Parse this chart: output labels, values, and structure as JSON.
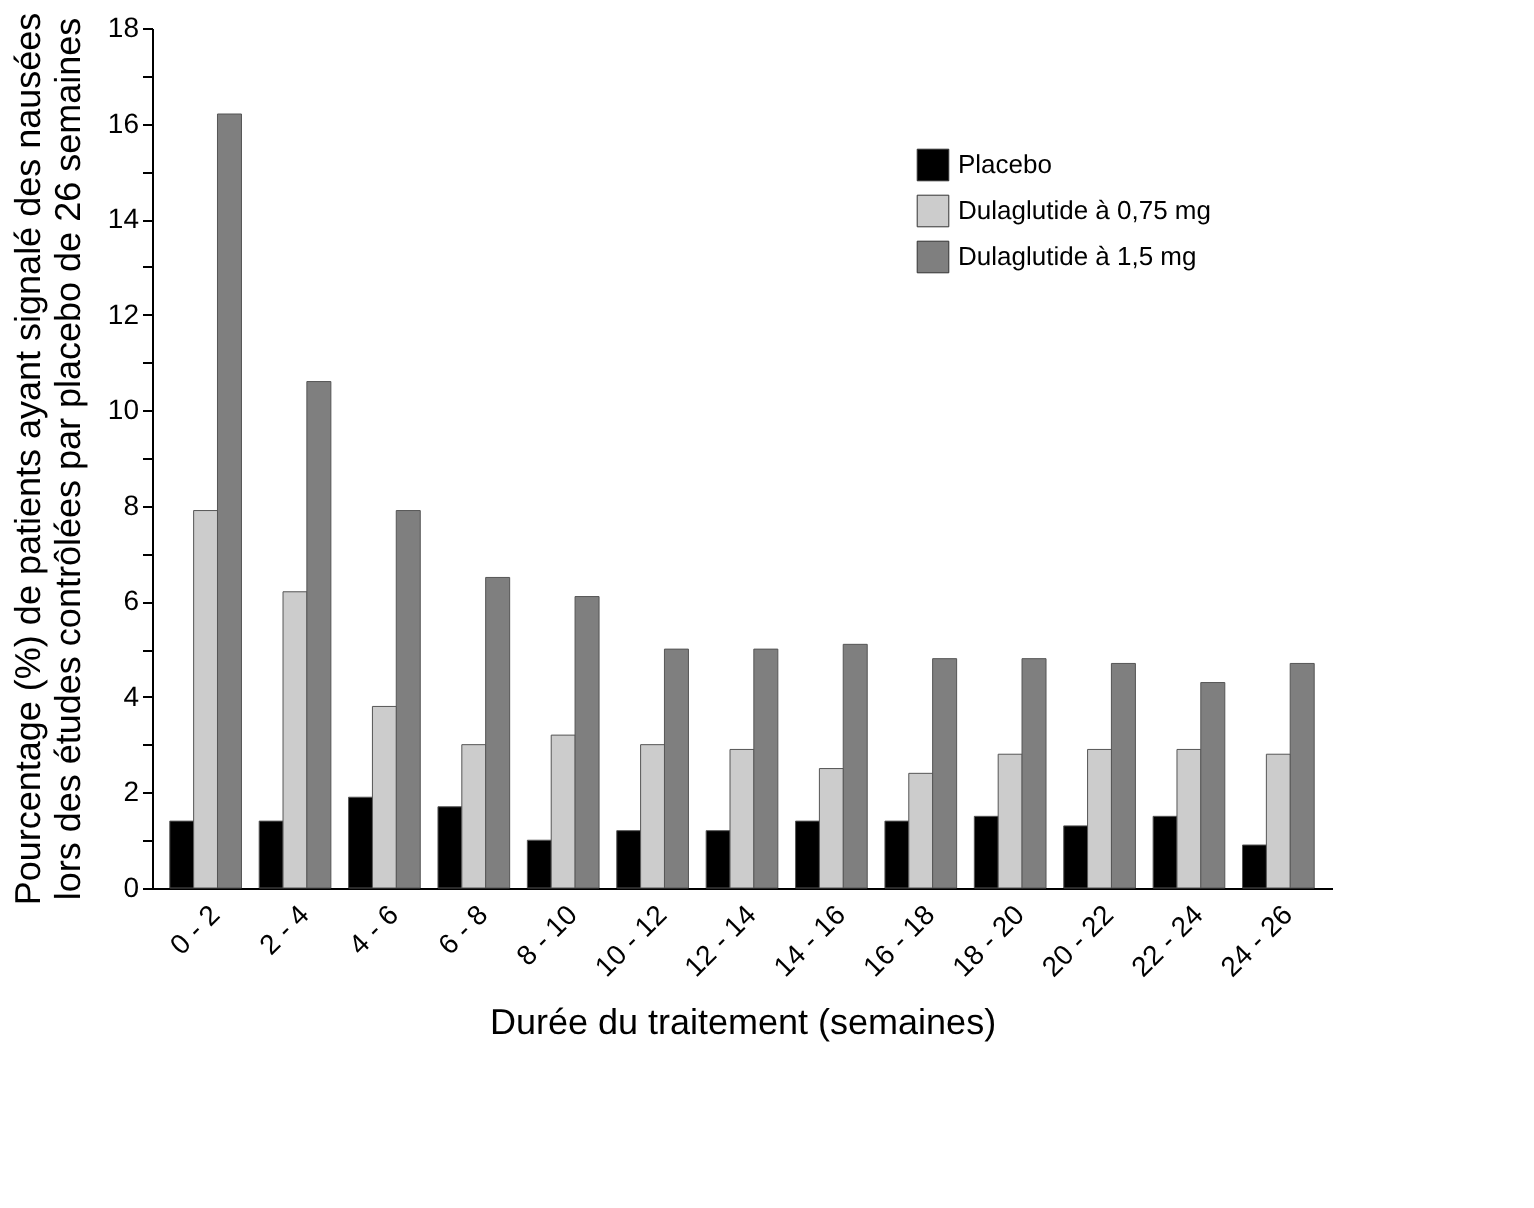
{
  "chart_data": {
    "type": "bar",
    "xlabel": "Durée du traitement (semaines)",
    "ylabel": "Pourcentage (%) de patients ayant signalé des nausées\nlors des études contrôlées par placebo de 26 semaines",
    "categories": [
      "0 - 2",
      "2 - 4",
      "4 - 6",
      "6 - 8",
      "8 - 10",
      "10 - 12",
      "12 - 14",
      "14 - 16",
      "16 - 18",
      "18 - 20",
      "20 - 22",
      "22 - 24",
      "24 - 26"
    ],
    "series": [
      {
        "name": "Placebo",
        "color": "#000000",
        "values": [
          1.4,
          1.4,
          1.9,
          1.7,
          1.0,
          1.2,
          1.2,
          1.4,
          1.4,
          1.5,
          1.3,
          1.5,
          0.9
        ]
      },
      {
        "name": "Dulaglutide à 0,75 mg",
        "color": "#cccccc",
        "values": [
          7.9,
          6.2,
          3.8,
          3.0,
          3.2,
          3.0,
          2.9,
          2.5,
          2.4,
          2.8,
          2.9,
          2.9,
          2.8
        ]
      },
      {
        "name": "Dulaglutide à 1,5 mg",
        "color": "#7f7f7f",
        "values": [
          16.2,
          10.6,
          7.9,
          6.5,
          6.1,
          5.0,
          5.0,
          5.1,
          4.8,
          4.8,
          4.7,
          4.3,
          4.7
        ]
      }
    ],
    "ylim": [
      0,
      18
    ],
    "yticks": [
      0,
      {
        "value": 1,
        "label": null
      },
      2,
      {
        "value": 3,
        "label": null
      },
      4,
      {
        "value": 5,
        "label": null
      },
      6,
      {
        "value": 7,
        "label": null
      },
      8,
      {
        "value": 9,
        "label": null
      },
      10,
      {
        "value": 11,
        "label": null
      },
      12,
      {
        "value": 13,
        "label": null
      },
      14,
      {
        "value": 15,
        "label": null
      },
      16,
      {
        "value": 17,
        "label": null
      },
      18
    ],
    "grid": false,
    "legend": "top right"
  }
}
